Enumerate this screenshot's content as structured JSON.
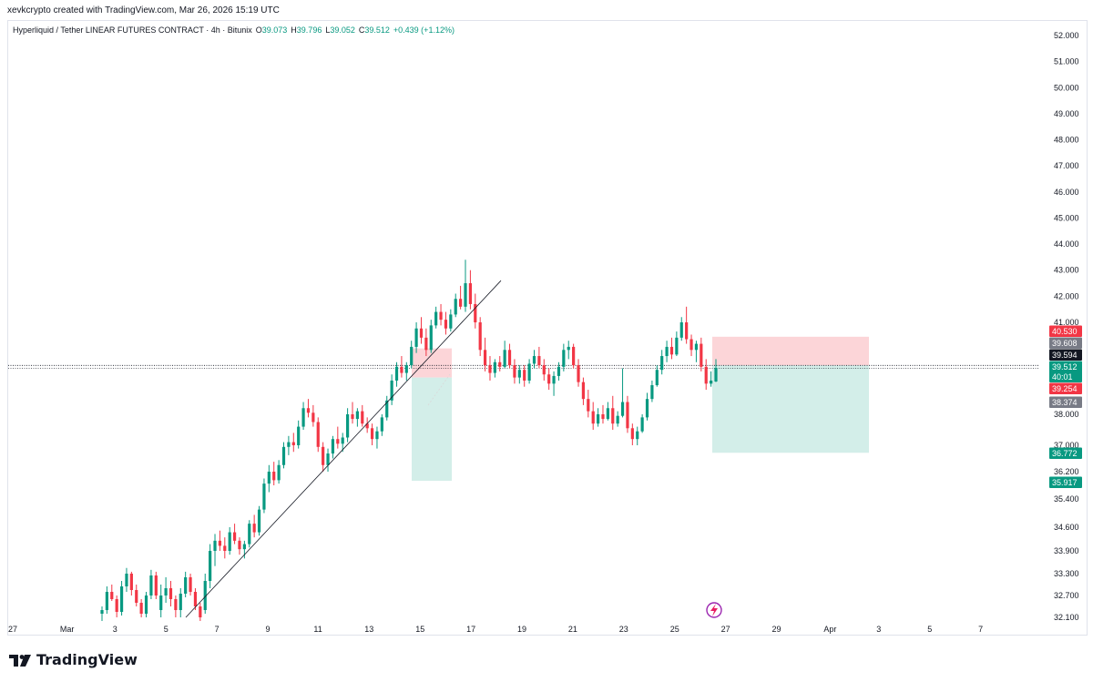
{
  "header": {
    "attribution": "xevkcrypto created with TradingView.com, Mar 26, 2026 15:19 UTC"
  },
  "legend": {
    "symbol": "Hyperliquid / Tether LINEAR FUTURES CONTRACT · 4h · Bitunix",
    "o_label": "O",
    "o": "39.073",
    "h_label": "H",
    "h": "39.796",
    "l_label": "L",
    "l": "39.052",
    "c_label": "C",
    "c": "39.512",
    "change": "+0.439 (+1.12%)"
  },
  "branding": {
    "name": "TradingView"
  },
  "colors": {
    "up": "#089981",
    "down": "#f23645",
    "profit_zone": "#d3eee9",
    "loss_zone": "#fcd5d8",
    "axis_text": "#131722"
  },
  "chart_data": {
    "type": "candlestick",
    "interval": "4h",
    "y_axis_ticks": [
      "52.000",
      "51.000",
      "50.000",
      "49.000",
      "48.000",
      "47.000",
      "46.000",
      "45.000",
      "44.000",
      "43.000",
      "42.000",
      "41.000",
      "38.000",
      "37.000",
      "36.200",
      "35.400",
      "34.600",
      "33.900",
      "33.300",
      "32.700",
      "32.100"
    ],
    "x_axis_ticks": [
      "27",
      "Mar",
      "3",
      "5",
      "7",
      "9",
      "11",
      "13",
      "15",
      "17",
      "19",
      "21",
      "23",
      "25",
      "27",
      "29",
      "Apr",
      "3",
      "5",
      "7"
    ],
    "price_labels": [
      {
        "text": "40.530",
        "style": "red"
      },
      {
        "text": "39.608",
        "style": "gray"
      },
      {
        "text": "39.594",
        "style": "black"
      },
      {
        "text": "39.512",
        "style": "green"
      },
      {
        "text": "40:01",
        "style": "green"
      },
      {
        "text": "39.254",
        "style": "red"
      },
      {
        "text": "38.374",
        "style": "gray"
      },
      {
        "text": "36.772",
        "style": "green"
      },
      {
        "text": "35.917",
        "style": "green"
      }
    ],
    "positions": [
      {
        "kind": "long",
        "entry": 39.2,
        "stop": 38.374,
        "target": 39.9,
        "x_start": "Mar 14",
        "x_end": "Mar 16"
      },
      {
        "kind": "short",
        "entry": 39.594,
        "stop": 40.53,
        "target": 36.772,
        "x_start": "Mar 26",
        "x_end": "Apr 2"
      }
    ],
    "trendline": {
      "from": {
        "date": "Mar 5",
        "price": 32.1
      },
      "to": {
        "date": "Mar 18",
        "price": 42.6
      }
    },
    "candles": [
      [
        32.2,
        32.4,
        32.0,
        32.3
      ],
      [
        32.3,
        32.95,
        32.2,
        32.8
      ],
      [
        32.8,
        33.0,
        32.55,
        32.6
      ],
      [
        32.6,
        32.7,
        32.1,
        32.25
      ],
      [
        32.25,
        33.1,
        32.15,
        32.95
      ],
      [
        32.95,
        33.45,
        32.8,
        33.3
      ],
      [
        33.3,
        33.35,
        32.7,
        32.85
      ],
      [
        32.85,
        33.0,
        32.4,
        32.5
      ],
      [
        32.5,
        32.6,
        32.1,
        32.2
      ],
      [
        32.2,
        32.8,
        32.1,
        32.7
      ],
      [
        32.7,
        33.4,
        32.6,
        33.25
      ],
      [
        33.25,
        33.35,
        32.6,
        32.7
      ],
      [
        32.3,
        33.0,
        32.1,
        32.7
      ],
      [
        32.7,
        33.2,
        32.5,
        32.9
      ],
      [
        32.9,
        33.1,
        32.4,
        32.6
      ],
      [
        32.6,
        32.7,
        32.1,
        32.3
      ],
      [
        32.3,
        32.9,
        32.1,
        32.75
      ],
      [
        32.75,
        33.35,
        32.65,
        33.2
      ],
      [
        33.2,
        33.3,
        32.7,
        32.8
      ],
      [
        32.8,
        32.9,
        32.3,
        32.4
      ],
      [
        32.4,
        32.5,
        32.0,
        32.1
      ],
      [
        32.3,
        33.3,
        32.2,
        33.1
      ],
      [
        33.1,
        34.1,
        32.9,
        33.9
      ],
      [
        33.9,
        34.4,
        33.5,
        34.2
      ],
      [
        34.2,
        34.5,
        33.9,
        34.05
      ],
      [
        34.05,
        34.3,
        33.7,
        33.9
      ],
      [
        33.9,
        34.6,
        33.8,
        34.45
      ],
      [
        34.45,
        34.7,
        34.1,
        34.2
      ],
      [
        34.2,
        34.3,
        33.8,
        33.95
      ],
      [
        33.95,
        34.2,
        33.7,
        34.1
      ],
      [
        34.1,
        34.8,
        34.0,
        34.7
      ],
      [
        34.7,
        34.95,
        34.3,
        34.45
      ],
      [
        34.45,
        35.2,
        34.35,
        35.1
      ],
      [
        35.1,
        36.0,
        35.0,
        35.85
      ],
      [
        35.85,
        36.4,
        35.6,
        36.2
      ],
      [
        36.2,
        36.5,
        35.8,
        35.95
      ],
      [
        35.95,
        36.55,
        35.85,
        36.4
      ],
      [
        36.4,
        37.1,
        36.3,
        36.95
      ],
      [
        36.95,
        37.3,
        36.7,
        37.1
      ],
      [
        37.1,
        37.4,
        36.8,
        37.0
      ],
      [
        37.0,
        37.8,
        36.9,
        37.6
      ],
      [
        37.6,
        38.4,
        37.5,
        38.2
      ],
      [
        38.2,
        38.5,
        37.9,
        38.05
      ],
      [
        38.05,
        38.3,
        37.6,
        37.75
      ],
      [
        37.75,
        37.9,
        36.8,
        36.95
      ],
      [
        36.95,
        37.1,
        36.2,
        36.4
      ],
      [
        36.4,
        36.9,
        36.2,
        36.75
      ],
      [
        36.75,
        37.3,
        36.6,
        37.2
      ],
      [
        37.2,
        37.6,
        36.9,
        37.05
      ],
      [
        37.05,
        37.4,
        36.8,
        37.25
      ],
      [
        37.25,
        38.2,
        37.1,
        38.0
      ],
      [
        38.0,
        38.4,
        37.7,
        37.85
      ],
      [
        37.85,
        38.2,
        37.6,
        38.1
      ],
      [
        38.1,
        38.3,
        37.6,
        37.7
      ],
      [
        37.7,
        37.9,
        37.4,
        37.55
      ],
      [
        37.55,
        37.7,
        37.0,
        37.2
      ],
      [
        37.2,
        37.6,
        36.9,
        37.45
      ],
      [
        37.45,
        38.0,
        37.3,
        37.9
      ],
      [
        37.9,
        38.6,
        37.8,
        38.45
      ],
      [
        38.45,
        39.3,
        38.3,
        39.1
      ],
      [
        39.1,
        39.7,
        38.9,
        39.55
      ],
      [
        39.55,
        39.9,
        39.2,
        39.35
      ],
      [
        39.35,
        39.7,
        39.1,
        39.6
      ],
      [
        39.6,
        40.4,
        39.5,
        40.2
      ],
      [
        40.2,
        41.0,
        40.0,
        40.8
      ],
      [
        40.8,
        41.2,
        40.3,
        40.5
      ],
      [
        40.5,
        40.8,
        39.9,
        40.1
      ],
      [
        40.1,
        41.1,
        40.0,
        40.9
      ],
      [
        40.9,
        41.6,
        40.8,
        41.4
      ],
      [
        41.4,
        41.7,
        40.9,
        41.1
      ],
      [
        41.1,
        41.4,
        40.6,
        40.8
      ],
      [
        40.8,
        41.5,
        40.7,
        41.3
      ],
      [
        41.3,
        42.1,
        41.2,
        41.9
      ],
      [
        41.9,
        42.4,
        41.5,
        41.6
      ],
      [
        41.6,
        43.4,
        41.4,
        42.5
      ],
      [
        42.5,
        43.0,
        41.5,
        41.7
      ],
      [
        41.7,
        42.1,
        40.8,
        41.0
      ],
      [
        41.0,
        41.2,
        39.9,
        40.1
      ],
      [
        40.1,
        40.5,
        39.4,
        39.6
      ],
      [
        39.6,
        39.9,
        39.1,
        39.35
      ],
      [
        39.35,
        39.8,
        39.2,
        39.7
      ],
      [
        39.7,
        39.9,
        39.4,
        39.55
      ],
      [
        39.55,
        40.4,
        39.5,
        40.1
      ],
      [
        40.1,
        40.3,
        39.5,
        39.6
      ],
      [
        39.6,
        39.8,
        39.0,
        39.2
      ],
      [
        39.2,
        39.6,
        39.0,
        39.45
      ],
      [
        39.45,
        39.6,
        38.9,
        39.1
      ],
      [
        39.1,
        39.8,
        39.0,
        39.65
      ],
      [
        39.65,
        40.1,
        39.5,
        39.9
      ],
      [
        39.9,
        40.2,
        39.5,
        39.6
      ],
      [
        39.6,
        39.8,
        39.1,
        39.3
      ],
      [
        39.3,
        39.5,
        38.8,
        39.0
      ],
      [
        39.0,
        39.4,
        38.6,
        39.25
      ],
      [
        39.25,
        39.7,
        39.1,
        39.55
      ],
      [
        39.55,
        40.3,
        39.4,
        40.1
      ],
      [
        40.1,
        40.4,
        39.8,
        40.2
      ],
      [
        40.2,
        40.3,
        39.5,
        39.6
      ],
      [
        39.6,
        39.8,
        38.9,
        39.05
      ],
      [
        39.05,
        39.2,
        38.3,
        38.5
      ],
      [
        38.5,
        38.8,
        37.9,
        38.1
      ],
      [
        38.1,
        38.4,
        37.5,
        37.7
      ],
      [
        37.7,
        38.2,
        37.6,
        38.0
      ],
      [
        38.0,
        38.3,
        37.7,
        37.85
      ],
      [
        37.85,
        38.4,
        37.8,
        38.2
      ],
      [
        38.2,
        38.6,
        37.5,
        37.7
      ],
      [
        37.7,
        38.1,
        37.6,
        37.95
      ],
      [
        37.95,
        39.5,
        37.9,
        38.4
      ],
      [
        38.4,
        38.6,
        37.4,
        37.55
      ],
      [
        37.55,
        37.7,
        37.0,
        37.2
      ],
      [
        37.2,
        37.6,
        37.0,
        37.45
      ],
      [
        37.45,
        38.0,
        37.4,
        37.9
      ],
      [
        37.9,
        38.7,
        37.8,
        38.5
      ],
      [
        38.5,
        39.1,
        38.4,
        38.95
      ],
      [
        38.95,
        39.6,
        38.9,
        39.45
      ],
      [
        39.45,
        40.1,
        39.3,
        39.9
      ],
      [
        39.9,
        40.4,
        39.7,
        40.2
      ],
      [
        40.2,
        40.5,
        39.8,
        39.95
      ],
      [
        39.95,
        40.7,
        39.9,
        40.5
      ],
      [
        40.5,
        41.2,
        40.4,
        41.0
      ],
      [
        41.0,
        41.6,
        40.3,
        40.45
      ],
      [
        40.45,
        40.6,
        39.9,
        40.1
      ],
      [
        40.1,
        40.4,
        39.7,
        40.3
      ],
      [
        40.3,
        40.5,
        39.4,
        39.55
      ],
      [
        39.55,
        39.8,
        38.8,
        39.0
      ],
      [
        39.0,
        39.4,
        38.9,
        39.1
      ],
      [
        39.07,
        39.8,
        39.05,
        39.51
      ]
    ]
  }
}
